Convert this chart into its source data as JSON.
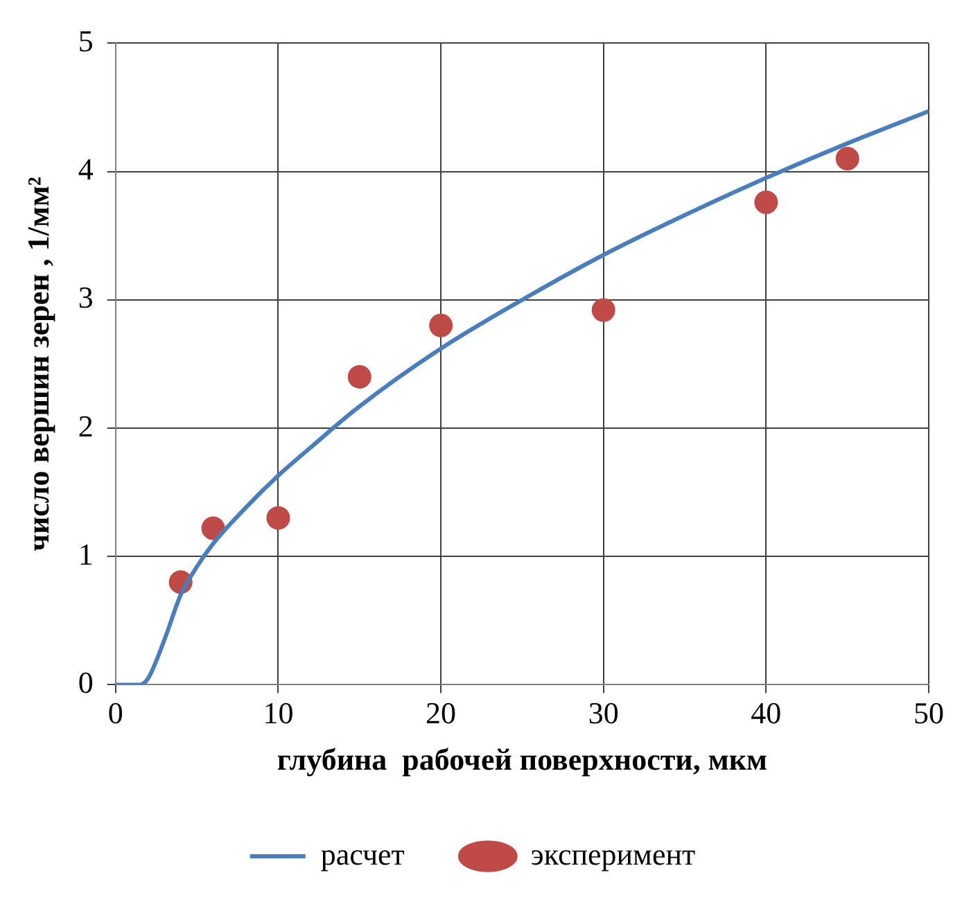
{
  "chart_data": {
    "type": "line",
    "xlabel": "глубина  рабочей поверхности, мкм",
    "ylabel": "число вершин зерен , 1/мм²",
    "xlim": [
      0,
      50
    ],
    "xticks": [
      0,
      10,
      20,
      30,
      40,
      50
    ],
    "ylim": [
      0,
      5
    ],
    "yticks": [
      0,
      1,
      2,
      3,
      4,
      5
    ],
    "grid": true,
    "legend": "bottom",
    "series": [
      {
        "name": "расчет",
        "color": "#4a7ebb",
        "marker": "none",
        "line_style": "solid",
        "x": [
          0,
          1.5,
          2,
          3,
          4,
          5,
          6,
          8,
          10,
          12,
          15,
          20,
          25,
          30,
          35,
          40,
          45,
          50
        ],
        "values": [
          0,
          0,
          0.05,
          0.35,
          0.7,
          0.92,
          1.1,
          1.38,
          1.63,
          1.85,
          2.17,
          2.62,
          3.0,
          3.35,
          3.66,
          3.95,
          4.22,
          4.47
        ]
      },
      {
        "name": "эксперимент",
        "type": "scatter",
        "color": "#be4b48",
        "marker": "circle",
        "x": [
          4,
          6,
          10,
          15,
          20,
          30,
          40,
          45
        ],
        "values": [
          0.8,
          1.22,
          1.3,
          2.4,
          2.8,
          2.92,
          3.76,
          4.1
        ]
      }
    ]
  }
}
